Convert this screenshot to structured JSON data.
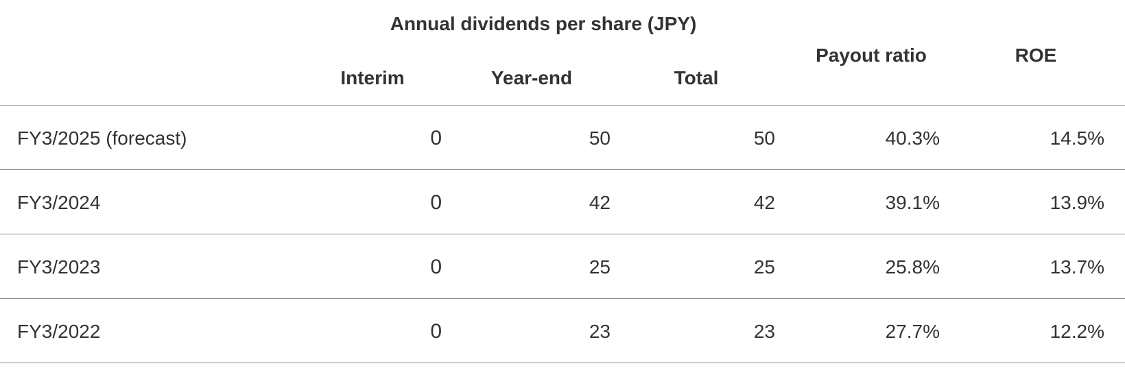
{
  "table": {
    "group_header": "Annual dividends per share (JPY)",
    "columns": {
      "interim": "Interim",
      "year_end": "Year-end",
      "total": "Total",
      "payout_ratio": "Payout ratio",
      "roe": "ROE"
    },
    "rows": [
      {
        "label": "FY3/2025 (forecast)",
        "interim": "0",
        "year_end": "50",
        "total": "50",
        "payout_ratio": "40.3%",
        "roe": "14.5%"
      },
      {
        "label": "FY3/2024",
        "interim": "0",
        "year_end": "42",
        "total": "42",
        "payout_ratio": "39.1%",
        "roe": "13.9%"
      },
      {
        "label": "FY3/2023",
        "interim": "0",
        "year_end": "25",
        "total": "25",
        "payout_ratio": "25.8%",
        "roe": "13.7%"
      },
      {
        "label": "FY3/2022",
        "interim": "0",
        "year_end": "23",
        "total": "23",
        "payout_ratio": "27.7%",
        "roe": "12.2%"
      }
    ]
  }
}
